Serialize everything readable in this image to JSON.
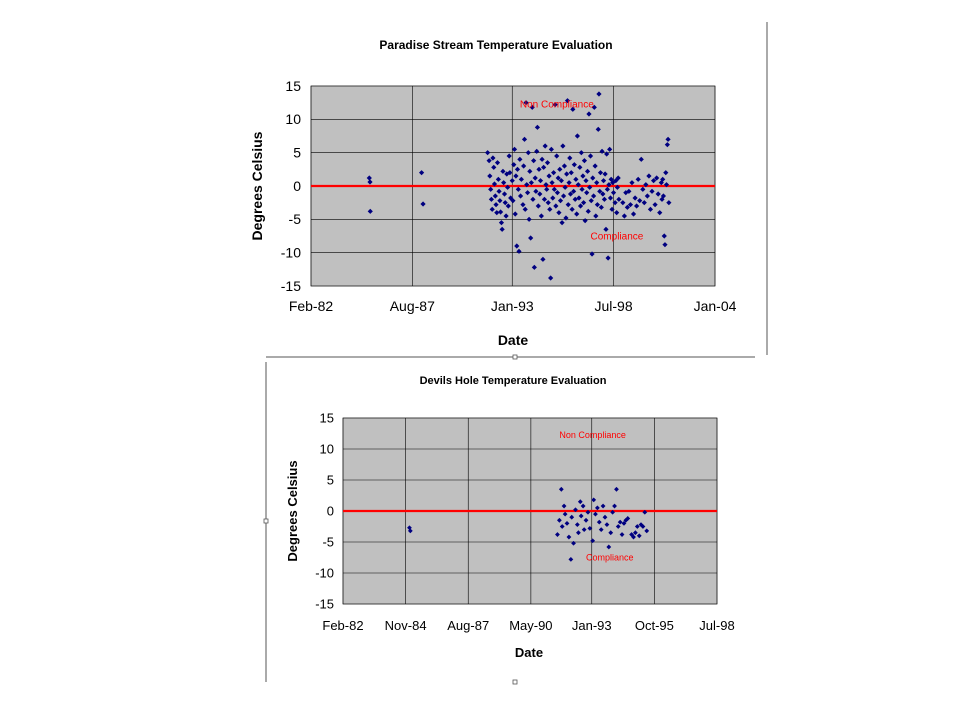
{
  "colors": {
    "plot_background": "#c0c0c0",
    "gridline": "#000000",
    "threshold_line": "#ff0000",
    "marker": "#000080",
    "region_label": "#ff0000"
  },
  "chart_data": [
    {
      "type": "scatter",
      "title": "Paradise Stream Temperature Evaluation",
      "xlabel": "Date",
      "ylabel": "Degrees Celsius",
      "x_axis": "date",
      "xlim": [
        "1982-02-01",
        "2004-01-01"
      ],
      "xticks": [
        "1982-02-01",
        "1987-08-01",
        "1993-01-01",
        "1998-07-01",
        "2004-01-01"
      ],
      "xtick_labels": [
        "Feb-82",
        "Aug-87",
        "Jan-93",
        "Jul-98",
        "Jan-04"
      ],
      "ylim": [
        -15,
        15
      ],
      "yticks": [
        15,
        10,
        5,
        0,
        -5,
        -10,
        -15
      ],
      "ytick_labels": [
        "15",
        "10",
        "5",
        "0",
        "-5",
        "-10",
        "-15"
      ],
      "grid": true,
      "threshold": 0,
      "annotations": [
        {
          "text": "Non Compliance",
          "x": "1993-06-01",
          "y": 11.8
        },
        {
          "text": "Compliance",
          "x": "1997-04-01",
          "y": -8.0
        }
      ],
      "points": [
        [
          "1985-04-01",
          1.2
        ],
        [
          "1985-04-15",
          0.6
        ],
        [
          "1985-04-20",
          -3.8
        ],
        [
          "1988-02-01",
          2.0
        ],
        [
          "1988-03-01",
          -2.7
        ],
        [
          "1991-09-01",
          5.0
        ],
        [
          "1991-10-01",
          3.8
        ],
        [
          "1991-10-15",
          1.5
        ],
        [
          "1991-11-01",
          -0.5
        ],
        [
          "1991-11-15",
          -2.0
        ],
        [
          "1991-12-01",
          -3.5
        ],
        [
          "1991-12-15",
          4.2
        ],
        [
          "1992-01-01",
          2.8
        ],
        [
          "1992-01-15",
          0.3
        ],
        [
          "1992-02-01",
          -1.5
        ],
        [
          "1992-02-15",
          -2.8
        ],
        [
          "1992-03-01",
          -4.0
        ],
        [
          "1992-03-15",
          3.5
        ],
        [
          "1992-04-01",
          1.0
        ],
        [
          "1992-04-15",
          -0.8
        ],
        [
          "1992-05-01",
          -2.2
        ],
        [
          "1992-05-15",
          -3.9
        ],
        [
          "1992-06-01",
          -5.5
        ],
        [
          "1992-06-15",
          -6.5
        ],
        [
          "1992-07-01",
          2.2
        ],
        [
          "1992-07-15",
          0.5
        ],
        [
          "1992-08-01",
          -1.2
        ],
        [
          "1992-08-15",
          -2.5
        ],
        [
          "1992-09-01",
          -4.5
        ],
        [
          "1992-09-15",
          1.8
        ],
        [
          "1992-10-01",
          -0.2
        ],
        [
          "1992-10-15",
          -3.0
        ],
        [
          "1992-11-01",
          4.5
        ],
        [
          "1992-11-15",
          2.0
        ],
        [
          "1992-12-01",
          -1.8
        ],
        [
          "1993-01-01",
          0.8
        ],
        [
          "1993-01-15",
          -2.2
        ],
        [
          "1993-02-01",
          3.2
        ],
        [
          "1993-02-15",
          5.5
        ],
        [
          "1993-03-01",
          -4.2
        ],
        [
          "1993-03-15",
          1.5
        ],
        [
          "1993-04-01",
          -9.0
        ],
        [
          "1993-04-15",
          2.5
        ],
        [
          "1993-05-01",
          -0.5
        ],
        [
          "1993-05-15",
          -9.8
        ],
        [
          "1993-06-01",
          4.0
        ],
        [
          "1993-06-15",
          -1.5
        ],
        [
          "1993-07-01",
          1.0
        ],
        [
          "1993-08-01",
          -2.8
        ],
        [
          "1993-08-15",
          3.0
        ],
        [
          "1993-09-01",
          7.0
        ],
        [
          "1993-09-15",
          -3.5
        ],
        [
          "1993-10-01",
          12.5
        ],
        [
          "1993-10-15",
          0.2
        ],
        [
          "1993-11-01",
          -1.0
        ],
        [
          "1993-11-15",
          5.0
        ],
        [
          "1993-12-01",
          -5.0
        ],
        [
          "1993-12-15",
          2.2
        ],
        [
          "1994-01-01",
          -7.8
        ],
        [
          "1994-01-15",
          0.5
        ],
        [
          "1994-02-01",
          11.8
        ],
        [
          "1994-02-15",
          -2.0
        ],
        [
          "1994-03-01",
          3.8
        ],
        [
          "1994-03-15",
          -12.2
        ],
        [
          "1994-04-01",
          1.2
        ],
        [
          "1994-04-15",
          -0.8
        ],
        [
          "1994-05-01",
          5.2
        ],
        [
          "1994-05-15",
          8.8
        ],
        [
          "1994-06-01",
          -3.0
        ],
        [
          "1994-06-15",
          2.5
        ],
        [
          "1994-07-01",
          -1.2
        ],
        [
          "1994-07-15",
          0.8
        ],
        [
          "1994-08-01",
          -4.5
        ],
        [
          "1994-08-15",
          4.0
        ],
        [
          "1994-09-01",
          -11.0
        ],
        [
          "1994-09-15",
          2.8
        ],
        [
          "1994-10-01",
          -2.0
        ],
        [
          "1994-10-15",
          6.0
        ],
        [
          "1994-11-01",
          0.2
        ],
        [
          "1994-11-15",
          -0.5
        ],
        [
          "1994-12-01",
          3.5
        ],
        [
          "1994-12-15",
          -2.5
        ],
        [
          "1995-01-01",
          1.5
        ],
        [
          "1995-01-15",
          -3.5
        ],
        [
          "1995-02-01",
          -13.8
        ],
        [
          "1995-02-15",
          5.5
        ],
        [
          "1995-03-01",
          0.5
        ],
        [
          "1995-03-15",
          -1.8
        ],
        [
          "1995-04-01",
          2.0
        ],
        [
          "1995-04-15",
          -0.5
        ],
        [
          "1995-05-01",
          12.2
        ],
        [
          "1995-05-15",
          -3.0
        ],
        [
          "1995-06-01",
          4.5
        ],
        [
          "1995-06-15",
          -1.0
        ],
        [
          "1995-07-01",
          1.2
        ],
        [
          "1995-07-15",
          -4.0
        ],
        [
          "1995-08-01",
          2.5
        ],
        [
          "1995-08-15",
          -2.2
        ],
        [
          "1995-09-01",
          0.8
        ],
        [
          "1995-09-15",
          -5.5
        ],
        [
          "1995-10-01",
          6.0
        ],
        [
          "1995-10-15",
          -1.5
        ],
        [
          "1995-11-01",
          3.0
        ],
        [
          "1995-11-15",
          -0.2
        ],
        [
          "1995-12-01",
          -4.8
        ],
        [
          "1995-12-15",
          1.8
        ],
        [
          "1996-01-01",
          12.8
        ],
        [
          "1996-01-15",
          -2.8
        ],
        [
          "1996-02-01",
          0.5
        ],
        [
          "1996-02-15",
          4.2
        ],
        [
          "1996-03-01",
          -1.2
        ],
        [
          "1996-03-15",
          2.0
        ],
        [
          "1996-04-01",
          -3.5
        ],
        [
          "1996-04-15",
          11.5
        ],
        [
          "1996-05-01",
          -0.8
        ],
        [
          "1996-05-15",
          3.2
        ],
        [
          "1996-06-01",
          -2.0
        ],
        [
          "1996-06-15",
          1.0
        ],
        [
          "1996-07-01",
          -4.2
        ],
        [
          "1996-07-15",
          7.5
        ],
        [
          "1996-08-01",
          0.2
        ],
        [
          "1996-08-15",
          -1.8
        ],
        [
          "1996-09-01",
          2.8
        ],
        [
          "1996-09-15",
          -3.0
        ],
        [
          "1996-10-01",
          5.0
        ],
        [
          "1996-10-15",
          -0.5
        ],
        [
          "1996-11-01",
          1.5
        ],
        [
          "1996-11-15",
          -2.5
        ],
        [
          "1996-12-01",
          3.8
        ],
        [
          "1996-12-15",
          -5.2
        ],
        [
          "1997-01-01",
          0.8
        ],
        [
          "1997-01-15",
          -1.0
        ],
        [
          "1997-02-01",
          2.2
        ],
        [
          "1997-02-15",
          -3.8
        ],
        [
          "1997-03-01",
          10.8
        ],
        [
          "1997-03-15",
          -0.2
        ],
        [
          "1997-04-01",
          4.5
        ],
        [
          "1997-04-15",
          -2.2
        ],
        [
          "1997-05-01",
          -10.2
        ],
        [
          "1997-05-15",
          1.2
        ],
        [
          "1997-06-01",
          -1.5
        ],
        [
          "1997-06-15",
          11.8
        ],
        [
          "1997-07-01",
          3.0
        ],
        [
          "1997-07-15",
          -4.5
        ],
        [
          "1997-08-01",
          0.5
        ],
        [
          "1997-08-15",
          -2.8
        ],
        [
          "1997-09-01",
          8.5
        ],
        [
          "1997-09-15",
          13.8
        ],
        [
          "1997-10-01",
          -0.8
        ],
        [
          "1997-10-15",
          2.0
        ],
        [
          "1997-11-01",
          -3.2
        ],
        [
          "1997-11-15",
          5.2
        ],
        [
          "1997-12-01",
          -1.2
        ],
        [
          "1997-12-15",
          0.8
        ],
        [
          "1998-01-01",
          -2.0
        ],
        [
          "1998-01-15",
          1.8
        ],
        [
          "1998-02-01",
          -6.5
        ],
        [
          "1998-02-15",
          4.8
        ],
        [
          "1998-03-01",
          -0.5
        ],
        [
          "1998-03-15",
          -10.8
        ],
        [
          "1998-04-01",
          0.2
        ],
        [
          "1998-04-15",
          5.5
        ],
        [
          "1998-05-01",
          -1.8
        ],
        [
          "1998-05-15",
          1.0
        ],
        [
          "1998-06-01",
          -3.5
        ],
        [
          "1998-06-15",
          0.5
        ],
        [
          "1998-07-01",
          -1.0
        ],
        [
          "1998-08-01",
          -2.5
        ],
        [
          "1998-08-15",
          0.8
        ],
        [
          "1998-09-01",
          -4.0
        ],
        [
          "1998-09-15",
          -0.2
        ],
        [
          "1998-10-01",
          1.2
        ],
        [
          "1998-10-15",
          -2.0
        ],
        [
          "1999-01-01",
          -2.5
        ],
        [
          "1999-02-01",
          -4.5
        ],
        [
          "1999-03-01",
          -1.0
        ],
        [
          "1999-04-01",
          -3.2
        ],
        [
          "1999-05-01",
          -0.8
        ],
        [
          "1999-06-01",
          -2.8
        ],
        [
          "1999-07-01",
          0.5
        ],
        [
          "1999-08-01",
          -4.2
        ],
        [
          "1999-09-01",
          -1.8
        ],
        [
          "1999-10-01",
          -3.0
        ],
        [
          "1999-11-01",
          1.0
        ],
        [
          "1999-12-01",
          -2.2
        ],
        [
          "2000-01-01",
          4.0
        ],
        [
          "2000-02-01",
          -0.5
        ],
        [
          "2000-03-01",
          -2.5
        ],
        [
          "2000-04-01",
          0.2
        ],
        [
          "2000-05-01",
          -1.5
        ],
        [
          "2000-06-01",
          1.5
        ],
        [
          "2000-07-01",
          -3.5
        ],
        [
          "2000-08-01",
          -0.8
        ],
        [
          "2000-09-01",
          0.8
        ],
        [
          "2000-10-01",
          -2.8
        ],
        [
          "2000-11-01",
          1.2
        ],
        [
          "2000-12-01",
          -1.2
        ],
        [
          "2001-01-01",
          -4.0
        ],
        [
          "2001-02-01",
          0.5
        ],
        [
          "2001-02-15",
          -2.0
        ],
        [
          "2001-03-01",
          1.0
        ],
        [
          "2001-03-15",
          -1.5
        ],
        [
          "2001-04-01",
          -7.5
        ],
        [
          "2001-04-15",
          -8.8
        ],
        [
          "2001-05-01",
          2.0
        ],
        [
          "2001-05-15",
          0.2
        ],
        [
          "2001-06-01",
          6.2
        ],
        [
          "2001-06-15",
          7.0
        ],
        [
          "2001-07-01",
          -2.5
        ]
      ]
    },
    {
      "type": "scatter",
      "title": "Devils Hole Temperature Evaluation",
      "xlabel": "Date",
      "ylabel": "Degrees Celsius",
      "x_axis": "date",
      "xlim": [
        "1982-02-01",
        "1998-07-01"
      ],
      "xticks": [
        "1982-02-01",
        "1984-11-01",
        "1987-08-01",
        "1990-05-01",
        "1993-01-01",
        "1995-10-01",
        "1998-07-01"
      ],
      "xtick_labels": [
        "Feb-82",
        "Nov-84",
        "Aug-87",
        "May-90",
        "Jan-93",
        "Oct-95",
        "Jul-98"
      ],
      "ylim": [
        -15,
        15
      ],
      "yticks": [
        15,
        10,
        5,
        0,
        -5,
        -10,
        -15
      ],
      "ytick_labels": [
        "15",
        "10",
        "5",
        "0",
        "-5",
        "-10",
        "-15"
      ],
      "grid": true,
      "threshold": 0,
      "annotations": [
        {
          "text": "Non Compliance",
          "x": "1991-08-01",
          "y": 11.8
        },
        {
          "text": "Compliance",
          "x": "1992-10-01",
          "y": -8.0
        }
      ],
      "points": [
        [
          "1985-01-01",
          -2.7
        ],
        [
          "1985-01-15",
          -3.2
        ],
        [
          "1991-07-01",
          -3.8
        ],
        [
          "1991-08-01",
          -1.5
        ],
        [
          "1991-09-01",
          3.5
        ],
        [
          "1991-09-15",
          -2.5
        ],
        [
          "1991-10-15",
          0.8
        ],
        [
          "1991-11-01",
          -0.5
        ],
        [
          "1991-12-01",
          -2.0
        ],
        [
          "1992-01-01",
          -4.2
        ],
        [
          "1992-02-01",
          -7.8
        ],
        [
          "1992-02-15",
          -1.0
        ],
        [
          "1992-03-15",
          -5.2
        ],
        [
          "1992-04-15",
          0.2
        ],
        [
          "1992-05-15",
          -2.2
        ],
        [
          "1992-06-01",
          -3.5
        ],
        [
          "1992-07-01",
          1.5
        ],
        [
          "1992-07-15",
          -0.8
        ],
        [
          "1992-08-15",
          0.8
        ],
        [
          "1992-09-01",
          -3.0
        ],
        [
          "1992-10-01",
          -1.5
        ],
        [
          "1992-11-01",
          -0.2
        ],
        [
          "1992-12-01",
          -2.8
        ],
        [
          "1993-01-15",
          -4.8
        ],
        [
          "1993-02-01",
          1.8
        ],
        [
          "1993-03-01",
          -0.5
        ],
        [
          "1993-04-01",
          0.5
        ],
        [
          "1993-05-01",
          -1.8
        ],
        [
          "1993-06-01",
          -3.0
        ],
        [
          "1993-07-01",
          0.8
        ],
        [
          "1993-08-01",
          -1.0
        ],
        [
          "1993-09-01",
          -2.2
        ],
        [
          "1993-10-01",
          -5.8
        ],
        [
          "1993-11-01",
          -3.5
        ],
        [
          "1993-12-01",
          -0.2
        ],
        [
          "1994-01-01",
          0.8
        ],
        [
          "1994-02-01",
          3.5
        ],
        [
          "1994-03-01",
          -2.5
        ],
        [
          "1994-04-01",
          -1.8
        ],
        [
          "1994-05-01",
          -3.8
        ],
        [
          "1994-06-01",
          -2.0
        ],
        [
          "1994-07-01",
          -1.5
        ],
        [
          "1994-08-01",
          -1.2
        ],
        [
          "1994-10-01",
          -3.8
        ],
        [
          "1994-11-01",
          -4.2
        ],
        [
          "1994-12-01",
          -3.5
        ],
        [
          "1995-01-01",
          -2.5
        ],
        [
          "1995-02-01",
          -4.0
        ],
        [
          "1995-03-01",
          -2.2
        ],
        [
          "1995-04-01",
          -2.5
        ],
        [
          "1995-05-01",
          -0.2
        ],
        [
          "1995-06-01",
          -3.2
        ]
      ]
    }
  ]
}
